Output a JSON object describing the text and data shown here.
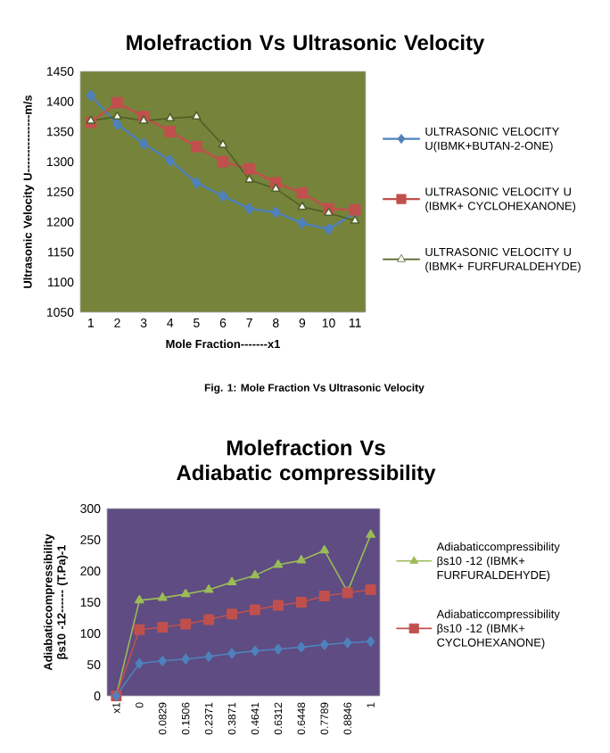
{
  "chart_data": [
    {
      "type": "line",
      "title": "Molefraction Vs Ultrasonic Velocity",
      "xlabel": "Mole Fraction-------x1",
      "ylabel": "Ultrasonic Velocity  U---------------m/s",
      "categories": [
        "1",
        "2",
        "3",
        "4",
        "5",
        "6",
        "7",
        "8",
        "9",
        "10",
        "11"
      ],
      "ylim": [
        1050,
        1450
      ],
      "yticks": [
        1050,
        1100,
        1150,
        1200,
        1250,
        1300,
        1350,
        1400,
        1450
      ],
      "legend": "right",
      "grid": false,
      "annotations": [
        "Fig. 1: Mole Fraction Vs Ultrasonic Velocity"
      ],
      "series": [
        {
          "name": "ULTRASONIC VELOCITY U(IBMK+BUTAN-2-ONE)",
          "color": "#4f81bd",
          "marker": "diamond",
          "values": [
            1410,
            1362,
            1330,
            1302,
            1265,
            1243,
            1222,
            1216,
            1198,
            1188,
            1215
          ]
        },
        {
          "name": "ULTRASONIC VELOCITY U (IBMK+ CYCLOHEXANONE)",
          "color": "#c0504d",
          "marker": "square",
          "values": [
            1365,
            1398,
            1375,
            1350,
            1325,
            1300,
            1288,
            1265,
            1248,
            1222,
            1220
          ]
        },
        {
          "name": "ULTRASONIC VELOCITY U (IBMK+ FURFURALDEHYDE)",
          "color": "#4f6228",
          "marker": "triangle",
          "values": [
            1368,
            1375,
            1368,
            1372,
            1375,
            1328,
            1270,
            1255,
            1225,
            1215,
            1202
          ]
        }
      ]
    },
    {
      "type": "line",
      "title": "Molefraction Vs Adiabatic compressibility",
      "ylabel": "Adiabaticcompressibility  βs10 -12------ (T.Pa)-1",
      "categories": [
        "x1",
        "0",
        "0.0829",
        "0.1506",
        "0.2371",
        "0.3871",
        "0.4641",
        "0.6312",
        "0.6448",
        "0.7789",
        "0.8846",
        "1"
      ],
      "ylim": [
        0,
        300
      ],
      "yticks": [
        0,
        50,
        100,
        150,
        200,
        250,
        300
      ],
      "legend": "right",
      "grid": false,
      "series": [
        {
          "name": "Adiabaticcompressibility βs10 -12 (IBMK+ FURFURALDEHYDE)",
          "color": "#9bbb59",
          "marker": "triangle",
          "values": [
            0,
            153,
            157,
            163,
            170,
            182,
            193,
            210,
            217,
            233,
            167,
            258
          ]
        },
        {
          "name": "Adiabaticcompressibility βs10 -12 (IBMK+ CYCLOHEXANONE)",
          "color": "#c0504d",
          "marker": "square",
          "values": [
            0,
            106,
            110,
            115,
            122,
            131,
            138,
            145,
            150,
            160,
            165,
            170
          ]
        },
        {
          "color": "#4f81bd",
          "marker": "diamond",
          "values": [
            0,
            52,
            56,
            59,
            63,
            68,
            72,
            75,
            78,
            82,
            85,
            87
          ]
        }
      ]
    }
  ]
}
